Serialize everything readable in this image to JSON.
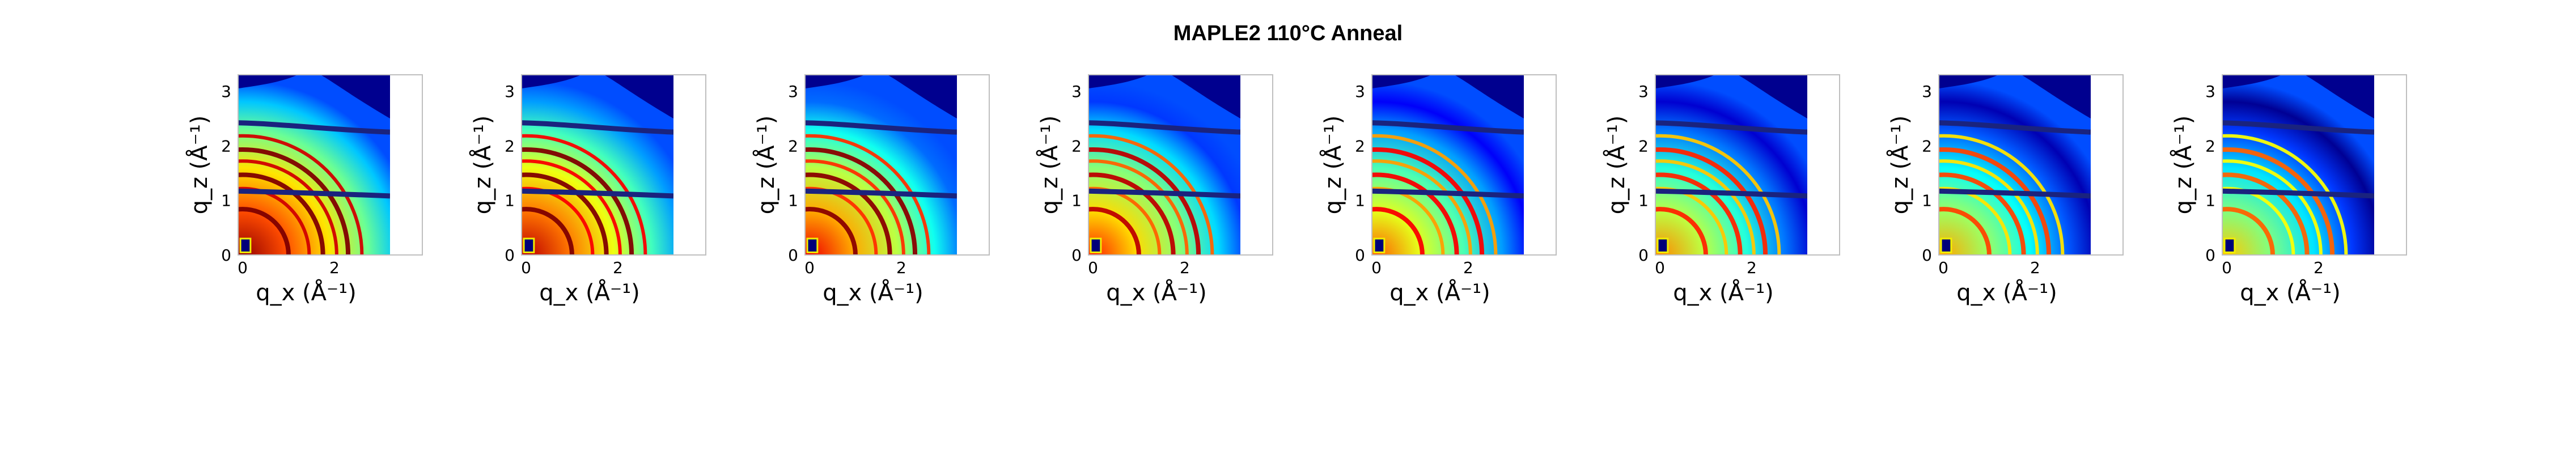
{
  "figure": {
    "title": "MAPLE2 110°C Anneal"
  },
  "chart_data": {
    "type": "heatmap",
    "colormap": "jet",
    "panel_count": 8,
    "xlabel": "q_x (Å⁻¹)",
    "ylabel": "q_z (Å⁻¹)",
    "xlim": [
      -0.1,
      3.3
    ],
    "ylim": [
      0,
      3.3
    ],
    "x_ticks": [
      0,
      2
    ],
    "y_ticks": [
      0,
      1,
      2,
      3
    ],
    "grid": false,
    "legend": "none",
    "panels": [
      {
        "background_intensity": 0.8
      },
      {
        "background_intensity": 0.76
      },
      {
        "background_intensity": 0.71
      },
      {
        "background_intensity": 0.66
      },
      {
        "background_intensity": 0.6
      },
      {
        "background_intensity": 0.56
      },
      {
        "background_intensity": 0.53
      },
      {
        "background_intensity": 0.5
      }
    ],
    "rings_q": [
      1.0,
      1.45,
      1.75,
      2.05,
      2.3,
      2.6
    ],
    "overlay_curves": [
      {
        "q_start": 1.17,
        "q_end": 1.08
      },
      {
        "q_start": 2.42,
        "q_end": 2.25
      }
    ]
  }
}
